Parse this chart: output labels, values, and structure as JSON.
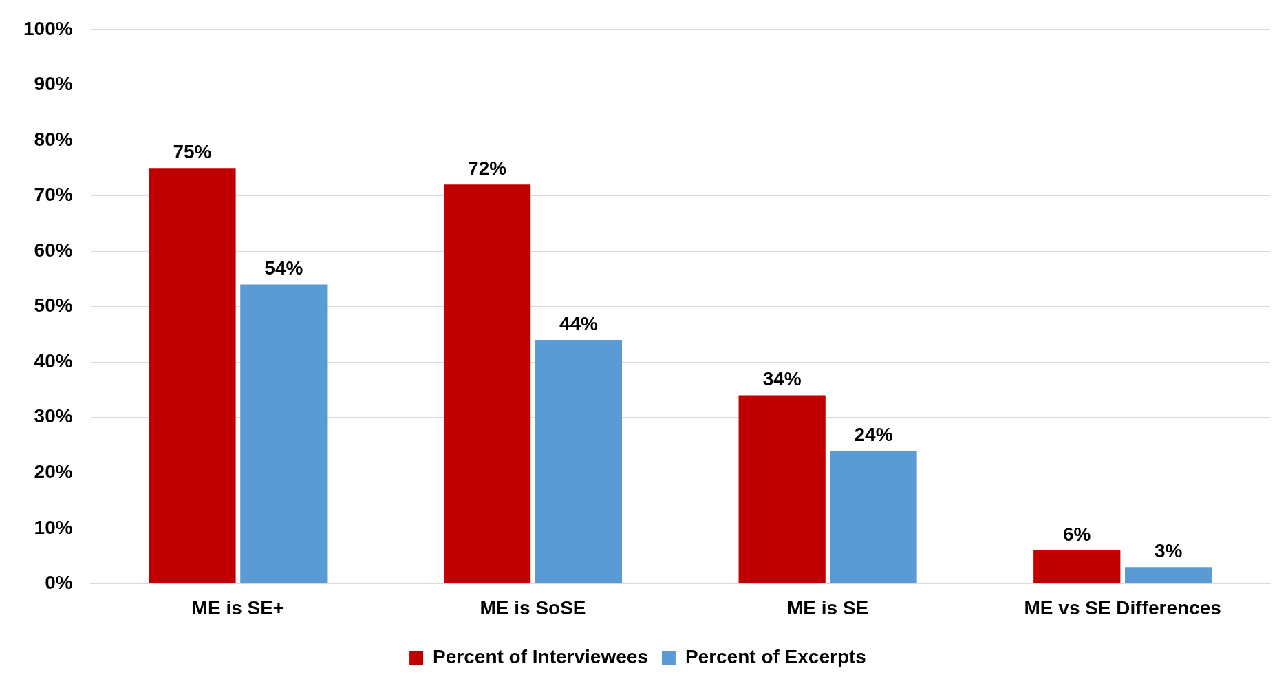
{
  "chart_data": {
    "type": "bar",
    "categories": [
      "ME is SE+",
      "ME is SoSE",
      "ME is SE",
      "ME vs SE Differences"
    ],
    "series": [
      {
        "name": "Percent of Interviewees",
        "color": "#c00000",
        "values": [
          75,
          72,
          34,
          6
        ],
        "value_labels": [
          "75%",
          "72%",
          "34%",
          "6%"
        ]
      },
      {
        "name": "Percent of Excerpts",
        "color": "#5b9bd5",
        "values": [
          54,
          44,
          24,
          3
        ],
        "value_labels": [
          "54%",
          "44%",
          "24%",
          "3%"
        ]
      }
    ],
    "ylim": [
      0,
      100
    ],
    "yticks": [
      {
        "value": 0,
        "label": "0%"
      },
      {
        "value": 10,
        "label": "10%"
      },
      {
        "value": 20,
        "label": "20%"
      },
      {
        "value": 30,
        "label": "30%"
      },
      {
        "value": 40,
        "label": "40%"
      },
      {
        "value": 50,
        "label": "50%"
      },
      {
        "value": 60,
        "label": "60%"
      },
      {
        "value": 70,
        "label": "70%"
      },
      {
        "value": 80,
        "label": "80%"
      },
      {
        "value": 90,
        "label": "90%"
      },
      {
        "value": 100,
        "label": "100%"
      }
    ],
    "grid": "y",
    "legend": "bottom"
  }
}
